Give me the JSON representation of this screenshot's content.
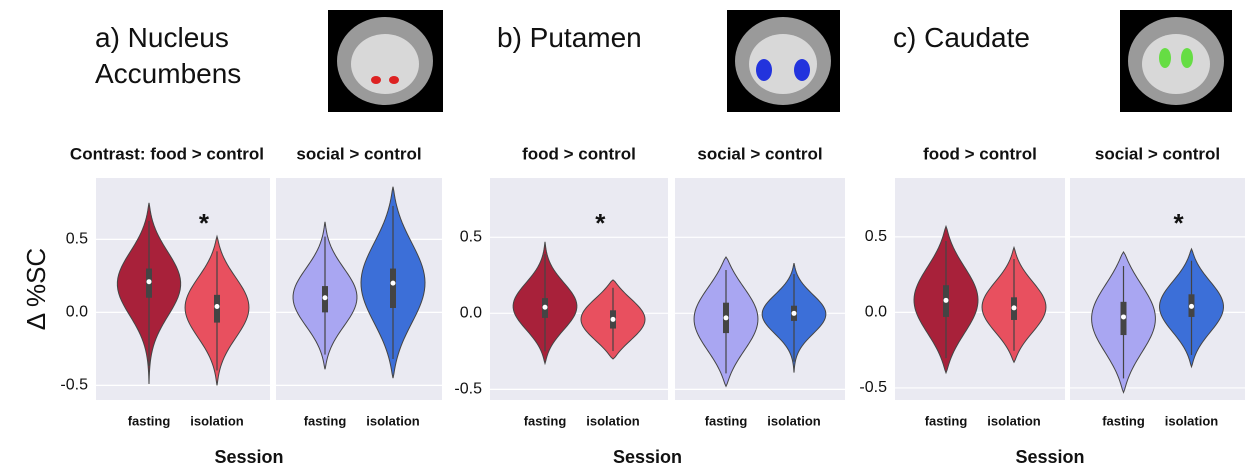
{
  "panels": [
    {
      "title": "a) Nucleus Accumbens",
      "xlabel": "Session"
    },
    {
      "title": "b) Putamen",
      "xlabel": "Session"
    },
    {
      "title": "c) Caudate",
      "xlabel": "Session"
    }
  ],
  "chart_data": [
    {
      "type": "violin",
      "title": "Contrast: food > control",
      "ylabel": "Δ %SC",
      "annotation": "*",
      "categories": [
        "fasting",
        "isolation"
      ],
      "colors": [
        "#a8213a",
        "#e8505f"
      ],
      "min": [
        -0.49,
        -0.5
      ],
      "q1": [
        0.1,
        -0.07
      ],
      "median": [
        0.21,
        0.04
      ],
      "q3": [
        0.3,
        0.12
      ],
      "max": [
        0.75,
        0.52
      ],
      "ylim": [
        -0.6,
        0.92
      ],
      "yticks": [
        0.5,
        {
          "value": 0,
          "label": "0.0"
        },
        -0.5
      ]
    },
    {
      "type": "violin",
      "title": "social > control",
      "categories": [
        "fasting",
        "isolation"
      ],
      "colors": [
        "#a9a6f2",
        "#3c6fd8"
      ],
      "min": [
        -0.39,
        -0.45
      ],
      "q1": [
        0.0,
        0.03
      ],
      "median": [
        0.1,
        0.2
      ],
      "q3": [
        0.18,
        0.3
      ],
      "max": [
        0.62,
        0.86
      ],
      "ylim": [
        -0.6,
        0.92
      ],
      "yticks": [
        0.5,
        0,
        -0.5
      ]
    },
    {
      "type": "violin",
      "title": "food > control",
      "annotation": "*",
      "categories": [
        "fasting",
        "isolation"
      ],
      "colors": [
        "#a8213a",
        "#e8505f"
      ],
      "min": [
        -0.33,
        -0.3
      ],
      "q1": [
        -0.03,
        -0.1
      ],
      "median": [
        0.04,
        -0.04
      ],
      "q3": [
        0.1,
        0.02
      ],
      "max": [
        0.47,
        0.22
      ],
      "ylim": [
        -0.57,
        0.89
      ],
      "yticks": [
        0.5,
        {
          "value": 0,
          "label": "0.0"
        },
        -0.5
      ]
    },
    {
      "type": "violin",
      "title": "social > control",
      "categories": [
        "fasting",
        "isolation"
      ],
      "colors": [
        "#a9a6f2",
        "#3c6fd8"
      ],
      "min": [
        -0.48,
        -0.39
      ],
      "q1": [
        -0.13,
        -0.05
      ],
      "median": [
        -0.03,
        0.0
      ],
      "q3": [
        0.07,
        0.05
      ],
      "max": [
        0.37,
        0.33
      ],
      "ylim": [
        -0.57,
        0.89
      ],
      "yticks": [
        0.5,
        0,
        -0.5
      ]
    },
    {
      "type": "violin",
      "title": "food > control",
      "categories": [
        "fasting",
        "isolation"
      ],
      "colors": [
        "#a8213a",
        "#e8505f"
      ],
      "min": [
        -0.4,
        -0.33
      ],
      "q1": [
        -0.03,
        -0.05
      ],
      "median": [
        0.08,
        0.03
      ],
      "q3": [
        0.18,
        0.1
      ],
      "max": [
        0.57,
        0.43
      ],
      "ylim": [
        -0.58,
        0.89
      ],
      "yticks": [
        0.5,
        {
          "value": 0,
          "label": "0.0"
        },
        -0.5
      ]
    },
    {
      "type": "violin",
      "title": "social > control",
      "annotation": "*",
      "categories": [
        "fasting",
        "isolation"
      ],
      "colors": [
        "#a9a6f2",
        "#3c6fd8"
      ],
      "min": [
        -0.53,
        -0.36
      ],
      "q1": [
        -0.15,
        -0.03
      ],
      "median": [
        -0.03,
        0.04
      ],
      "q3": [
        0.07,
        0.12
      ],
      "max": [
        0.4,
        0.42
      ],
      "ylim": [
        -0.58,
        0.89
      ],
      "yticks": [
        0.5,
        0,
        -0.5
      ]
    }
  ]
}
